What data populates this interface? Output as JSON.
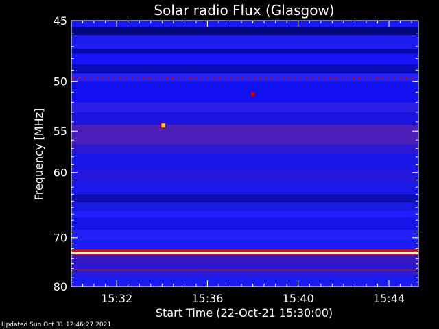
{
  "chart_data": {
    "type": "heatmap",
    "title": "Solar radio Flux (Glasgow)",
    "xlabel": "Start Time (22-Oct-21 15:30:00)",
    "ylabel": "Frequency [MHz]",
    "x_ticks": [
      "15:32",
      "15:36",
      "15:40",
      "15:44"
    ],
    "y_ticks": [
      "45",
      "50",
      "55",
      "60",
      "70",
      "80"
    ],
    "x_range_minutes": [
      0,
      15.3
    ],
    "y_range_mhz": [
      45,
      80
    ],
    "y_scale": "reciprocal",
    "colors": {
      "background": "#0000d8",
      "band_light": "#2424ff",
      "band_dark": "#0a0a9a",
      "band_purple": "#3a1ab0",
      "band_magenta": "#5a2090",
      "hot_line": "#fff0b0",
      "hot_red": "#d00000",
      "hot_yellow": "#ffd020"
    },
    "bands": [
      {
        "f0": 45.0,
        "f1": 45.5,
        "color": "#1818ff"
      },
      {
        "f0": 45.5,
        "f1": 46.1,
        "color": "#060680"
      },
      {
        "f0": 46.1,
        "f1": 47.2,
        "color": "#1c1cf0"
      },
      {
        "f0": 47.2,
        "f1": 47.6,
        "color": "#0808a8"
      },
      {
        "f0": 47.6,
        "f1": 48.5,
        "color": "#1414ff"
      },
      {
        "f0": 48.5,
        "f1": 49.3,
        "color": "#0a0ab8"
      },
      {
        "f0": 49.3,
        "f1": 50.0,
        "color": "#2424ff"
      },
      {
        "f0": 50.0,
        "f1": 52.0,
        "color": "#1010f0"
      },
      {
        "f0": 52.0,
        "f1": 53.0,
        "color": "#2a20e8"
      },
      {
        "f0": 53.0,
        "f1": 54.3,
        "color": "#1a14e0"
      },
      {
        "f0": 54.3,
        "f1": 56.5,
        "color": "#4a20b8"
      },
      {
        "f0": 56.5,
        "f1": 57.6,
        "color": "#2c18d0"
      },
      {
        "f0": 57.6,
        "f1": 59.5,
        "color": "#1a18e8"
      },
      {
        "f0": 59.5,
        "f1": 61.5,
        "color": "#2418e0"
      },
      {
        "f0": 61.5,
        "f1": 63.0,
        "color": "#1a1ae8"
      },
      {
        "f0": 63.0,
        "f1": 64.2,
        "color": "#0c0cb0"
      },
      {
        "f0": 64.2,
        "f1": 65.5,
        "color": "#1a1ae0"
      },
      {
        "f0": 65.5,
        "f1": 66.6,
        "color": "#2020ff"
      },
      {
        "f0": 66.6,
        "f1": 68.6,
        "color": "#1414e8"
      },
      {
        "f0": 68.6,
        "f1": 70.5,
        "color": "#2222f8"
      },
      {
        "f0": 70.5,
        "f1": 72.2,
        "color": "#1c1cf0"
      },
      {
        "f0": 72.2,
        "f1": 72.7,
        "color": "#c01818"
      },
      {
        "f0": 72.7,
        "f1": 73.0,
        "color": "#fff0c0"
      },
      {
        "f0": 73.0,
        "f1": 73.3,
        "color": "#c01818"
      },
      {
        "f0": 73.3,
        "f1": 75.0,
        "color": "#3a18c0"
      },
      {
        "f0": 75.0,
        "f1": 76.0,
        "color": "#2a18d8"
      },
      {
        "f0": 76.0,
        "f1": 76.6,
        "color": "#5a2090"
      },
      {
        "f0": 76.6,
        "f1": 77.6,
        "color": "#2a1ad8"
      },
      {
        "f0": 77.6,
        "f1": 80.0,
        "color": "#1c1cf0"
      }
    ],
    "dotted_line_mhz": 49.7,
    "hot_spots": [
      {
        "t": 4.05,
        "f": 54.4,
        "color": "#ffd020"
      },
      {
        "t": 8.0,
        "f": 51.2,
        "color": "#d00000"
      }
    ]
  },
  "footer": {
    "updated": "Updated Sun Oct 31 12:46:27 2021"
  }
}
